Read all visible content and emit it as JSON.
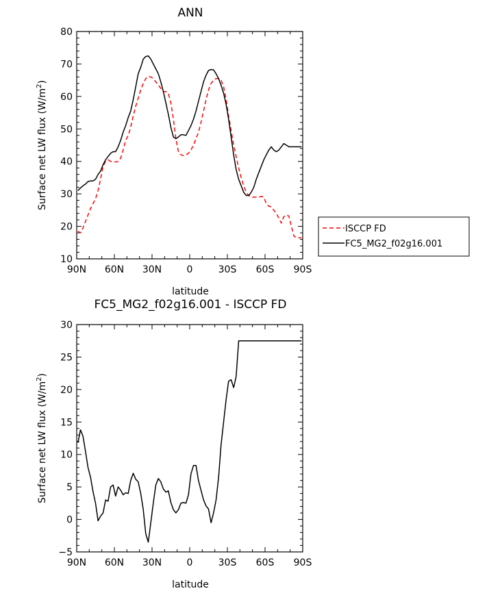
{
  "chart_data": [
    {
      "type": "line",
      "title": "ANN",
      "xlabel": "latitude",
      "ylabel": "Surface net LW flux (W/m²)",
      "ylabel_parts": {
        "main": "Surface net LW flux (W/m",
        "sup": "2",
        "end": ")"
      },
      "xlim": [
        90,
        -90
      ],
      "ylim": [
        10,
        80
      ],
      "xticks": [
        90,
        60,
        30,
        0,
        -30,
        -60,
        -90
      ],
      "xticklabels": [
        "90N",
        "60N",
        "30N",
        "0",
        "30S",
        "60S",
        "90S"
      ],
      "yticks": [
        10,
        20,
        30,
        40,
        50,
        60,
        70,
        80
      ],
      "yticklabels": [
        "10",
        "20",
        "30",
        "40",
        "50",
        "60",
        "70",
        "80"
      ],
      "grid": false,
      "legend": "outside-right",
      "series": [
        {
          "name": "ISCCP FD",
          "color": "#ff0000",
          "dash": true,
          "x": [
            89,
            87,
            85,
            83,
            81,
            79,
            77,
            75,
            73,
            71,
            69,
            67,
            65,
            63,
            61,
            59,
            57,
            55,
            53,
            51,
            49,
            47,
            45,
            43,
            41,
            39,
            37,
            35,
            33,
            31,
            29,
            27,
            25,
            23,
            21,
            19,
            17,
            15,
            13,
            11,
            9,
            7,
            5,
            3,
            1,
            -1,
            -3,
            -5,
            -7,
            -9,
            -11,
            -13,
            -15,
            -17,
            -19,
            -21,
            -23,
            -25,
            -27,
            -29,
            -31,
            -33,
            -35,
            -37,
            -39,
            -41,
            -43,
            -45,
            -47,
            -49,
            -51,
            -53,
            -55,
            -57,
            -59,
            -61,
            -63,
            -65,
            -67,
            -69,
            -71,
            -73,
            -75,
            -77,
            -79,
            -81,
            -83,
            -85,
            -87,
            -89
          ],
          "y": [
            18.5,
            18.0,
            19.5,
            21.5,
            23.5,
            25.5,
            27.0,
            28.5,
            31.0,
            34.5,
            38.5,
            40.0,
            40.5,
            40.0,
            40.0,
            39.8,
            40.0,
            41.0,
            43.5,
            46.5,
            48.0,
            50.5,
            54.0,
            57.0,
            59.5,
            62.0,
            64.0,
            65.5,
            66.2,
            66.0,
            65.5,
            64.5,
            63.5,
            62.5,
            61.5,
            61.5,
            61.0,
            58.0,
            53.0,
            47.0,
            43.0,
            42.0,
            41.8,
            42.0,
            42.5,
            43.5,
            45.0,
            47.0,
            49.0,
            52.0,
            55.5,
            59.0,
            62.0,
            64.0,
            65.0,
            65.5,
            65.5,
            65.0,
            63.0,
            59.0,
            54.0,
            49.5,
            45.0,
            41.5,
            38.0,
            35.0,
            32.5,
            30.5,
            29.5,
            29.0,
            29.0,
            29.0,
            29.0,
            29.2,
            29.0,
            27.0,
            26.2,
            26.0,
            25.0,
            24.0,
            22.5,
            21.0,
            23.0,
            23.5,
            23.2,
            20.0,
            17.0,
            16.5,
            16.5,
            16.5
          ]
        },
        {
          "name": "FC5_MG2_f02g16.001",
          "color": "#000000",
          "dash": false,
          "x": [
            89,
            87,
            85,
            83,
            81,
            79,
            77,
            75,
            73,
            71,
            69,
            67,
            65,
            63,
            61,
            59,
            57,
            55,
            53,
            51,
            49,
            47,
            45,
            43,
            41,
            39,
            37,
            35,
            33,
            31,
            29,
            27,
            25,
            23,
            21,
            19,
            17,
            15,
            13,
            11,
            9,
            7,
            5,
            3,
            1,
            -1,
            -3,
            -5,
            -7,
            -9,
            -11,
            -13,
            -15,
            -17,
            -19,
            -21,
            -23,
            -25,
            -27,
            -29,
            -31,
            -33,
            -35,
            -37,
            -39,
            -41,
            -43,
            -45,
            -47,
            -49,
            -51,
            -53,
            -55,
            -57,
            -59,
            -61,
            -63,
            -65,
            -67,
            -69,
            -71,
            -73,
            -75,
            -77,
            -79,
            -81,
            -83,
            -85,
            -87,
            -89
          ],
          "y": [
            31.0,
            31.8,
            32.5,
            33.0,
            33.8,
            34.0,
            34.0,
            34.5,
            36.0,
            37.0,
            39.0,
            40.5,
            41.5,
            42.5,
            43.0,
            43.0,
            44.5,
            46.5,
            49.0,
            51.0,
            53.5,
            55.5,
            59.0,
            63.0,
            67.0,
            69.0,
            71.5,
            72.3,
            72.5,
            71.5,
            70.0,
            68.5,
            67.0,
            64.5,
            61.5,
            58.0,
            54.5,
            50.5,
            47.5,
            47.0,
            47.5,
            48.2,
            48.2,
            48.0,
            49.5,
            51.0,
            53.0,
            55.5,
            58.5,
            61.5,
            64.5,
            66.5,
            68.0,
            68.3,
            68.2,
            67.0,
            65.5,
            63.5,
            61.0,
            57.5,
            53.0,
            47.5,
            42.0,
            37.5,
            34.5,
            32.5,
            30.5,
            29.5,
            29.5,
            30.5,
            32.0,
            34.5,
            36.5,
            38.5,
            40.5,
            42.0,
            43.5,
            44.5,
            43.5,
            43.0,
            43.5,
            44.5,
            45.5,
            45.0,
            44.5,
            44.5,
            44.5,
            44.5,
            44.5,
            44.5
          ]
        }
      ]
    },
    {
      "type": "line",
      "title": "FC5_MG2_f02g16.001 - ISCCP FD",
      "xlabel": "latitude",
      "ylabel": "Surface net LW flux (W/m²)",
      "ylabel_parts": {
        "main": "Surface net LW flux (W/m",
        "sup": "2",
        "end": ")"
      },
      "xlim": [
        90,
        -90
      ],
      "ylim": [
        -5,
        30
      ],
      "xticks": [
        90,
        60,
        30,
        0,
        -30,
        -60,
        -90
      ],
      "xticklabels": [
        "90N",
        "60N",
        "30N",
        "0",
        "30S",
        "60S",
        "90S"
      ],
      "yticks": [
        -5,
        0,
        5,
        10,
        15,
        20,
        25,
        30
      ],
      "yticklabels": [
        "−5",
        "0",
        "5",
        "10",
        "15",
        "20",
        "25",
        "30"
      ],
      "grid": false,
      "series": [
        {
          "color": "#000000",
          "x": [
            89,
            87,
            85,
            83,
            81,
            79,
            77,
            75,
            73,
            71,
            69,
            67,
            65,
            63,
            61,
            59,
            57,
            55,
            53,
            51,
            49,
            47,
            45,
            43,
            41,
            39,
            37,
            35,
            33,
            31,
            29,
            27,
            25,
            23,
            21,
            19,
            17,
            15,
            13,
            11,
            9,
            7,
            5,
            3,
            1,
            -1,
            -3,
            -5,
            -7,
            -9,
            -11,
            -13,
            -15,
            -17,
            -19,
            -21,
            -23,
            -25,
            -27,
            -29,
            -31,
            -33,
            -35,
            -37,
            -39,
            -41,
            -43,
            -45,
            -47,
            -49,
            -51,
            -53,
            -55,
            -57,
            -59,
            -61,
            -63,
            -65,
            -67,
            -69,
            -71,
            -73,
            -75,
            -77,
            -79,
            -81,
            -83,
            -85,
            -87,
            -89
          ],
          "y": [
            11.8,
            13.8,
            12.8,
            10.5,
            8.0,
            6.5,
            4.3,
            2.5,
            -0.2,
            0.5,
            1.0,
            3.0,
            2.8,
            5.0,
            5.3,
            3.6,
            5.0,
            4.5,
            3.8,
            4.1,
            4.0,
            6.0,
            7.1,
            6.2,
            5.8,
            4.0,
            1.5,
            -2.2,
            -3.5,
            -0.5,
            2.5,
            5.3,
            6.3,
            5.8,
            4.7,
            4.2,
            4.4,
            2.6,
            1.5,
            1.0,
            1.5,
            2.5,
            2.6,
            2.5,
            3.8,
            7.0,
            8.3,
            8.3,
            6.0,
            4.5,
            3.0,
            2.1,
            1.6,
            -0.5,
            1.0,
            3.0,
            6.5,
            11.5,
            15.0,
            18.5,
            21.3,
            21.5,
            20.3,
            22.0,
            27.5,
            27.5,
            27.5,
            27.5,
            27.5,
            27.5,
            27.5,
            27.5,
            27.5,
            27.5,
            27.5,
            27.5,
            27.5,
            27.5,
            27.5,
            27.5,
            27.5,
            27.5,
            27.5,
            27.5,
            27.5,
            27.5,
            27.5,
            27.5,
            27.5,
            27.5
          ]
        }
      ]
    }
  ]
}
